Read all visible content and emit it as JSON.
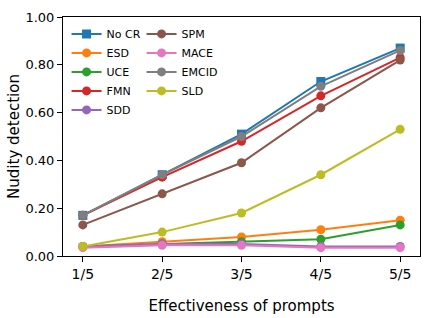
{
  "chart_data": {
    "type": "line",
    "x_label": "Effectiveness of prompts",
    "y_label": "Nudity detection",
    "categories": [
      "1/5",
      "2/5",
      "3/5",
      "4/5",
      "5/5"
    ],
    "ylim": [
      0,
      1
    ],
    "yticks": [
      {
        "value": 0,
        "label": "0.00"
      },
      {
        "value": 0.2,
        "label": "0.20"
      },
      {
        "value": 0.4,
        "label": "0.40"
      },
      {
        "value": 0.6,
        "label": "0.60"
      },
      {
        "value": 0.8,
        "label": "0.80"
      },
      {
        "value": 1,
        "label": "1.00"
      }
    ],
    "grid": false,
    "legend": "upper left",
    "series": [
      {
        "name": "No CR",
        "color": "#1f77b4",
        "marker": "square",
        "values": [
          0.17,
          0.34,
          0.51,
          0.73,
          0.87
        ]
      },
      {
        "name": "ESD",
        "color": "#ff7f0e",
        "marker": "circle",
        "values": [
          0.04,
          0.06,
          0.08,
          0.11,
          0.15
        ]
      },
      {
        "name": "UCE",
        "color": "#2ca02c",
        "marker": "circle",
        "values": [
          0.04,
          0.05,
          0.06,
          0.07,
          0.13
        ]
      },
      {
        "name": "FMN",
        "color": "#d62728",
        "marker": "circle",
        "values": [
          0.17,
          0.33,
          0.48,
          0.67,
          0.83
        ]
      },
      {
        "name": "SDD",
        "color": "#9467bd",
        "marker": "circle",
        "values": [
          0.04,
          0.05,
          0.05,
          0.04,
          0.04
        ]
      },
      {
        "name": "SPM",
        "color": "#8c564b",
        "marker": "circle",
        "values": [
          0.13,
          0.26,
          0.39,
          0.62,
          0.82
        ]
      },
      {
        "name": "MACE",
        "color": "#e377c2",
        "marker": "circle",
        "values": [
          0.035,
          0.045,
          0.045,
          0.035,
          0.035
        ]
      },
      {
        "name": "EMCID",
        "color": "#7f7f7f",
        "marker": "circle",
        "values": [
          0.17,
          0.34,
          0.5,
          0.71,
          0.86
        ]
      },
      {
        "name": "SLD",
        "color": "#bcbd22",
        "marker": "circle",
        "values": [
          0.04,
          0.1,
          0.18,
          0.34,
          0.53
        ]
      }
    ]
  }
}
